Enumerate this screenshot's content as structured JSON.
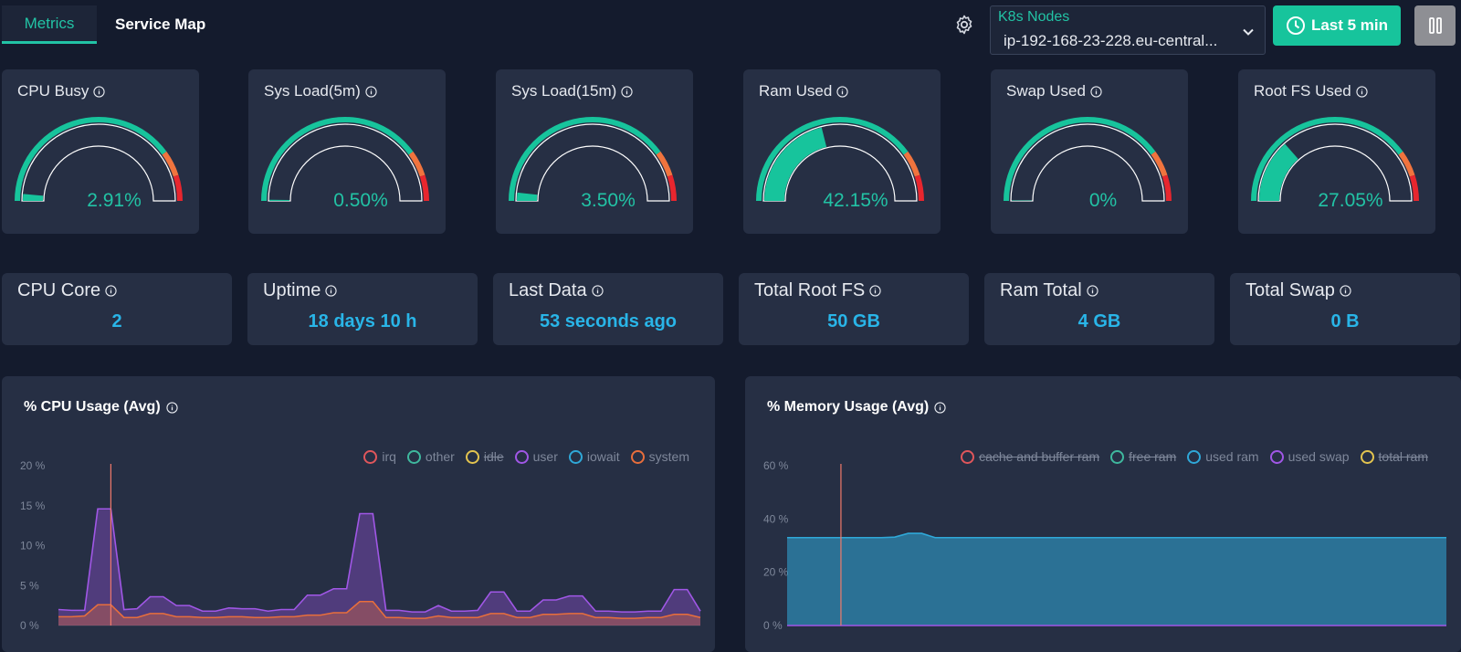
{
  "header": {
    "tabs": [
      {
        "label": "Metrics",
        "active": true
      },
      {
        "label": "Service Map",
        "active": false
      }
    ],
    "node_select": {
      "label": "K8s Nodes",
      "value": "ip-192-168-23-228.eu-central..."
    },
    "time_button": "Last 5 min"
  },
  "gauges": [
    {
      "title": "CPU Busy",
      "value": "2.91%",
      "fraction": 0.0291
    },
    {
      "title": "Sys Load(5m)",
      "value": "0.50%",
      "fraction": 0.005
    },
    {
      "title": "Sys Load(15m)",
      "value": "3.50%",
      "fraction": 0.035
    },
    {
      "title": "Ram Used",
      "value": "42.15%",
      "fraction": 0.4215
    },
    {
      "title": "Swap Used",
      "value": "0%",
      "fraction": 0
    },
    {
      "title": "Root FS Used",
      "value": "27.05%",
      "fraction": 0.2705
    }
  ],
  "stats": [
    {
      "title": "CPU Core",
      "value": "2"
    },
    {
      "title": "Uptime",
      "value": "18 days 10 h"
    },
    {
      "title": "Last Data",
      "value": "53 seconds ago"
    },
    {
      "title": "Total Root FS",
      "value": "50 GB"
    },
    {
      "title": "Ram Total",
      "value": "4 GB"
    },
    {
      "title": "Total Swap",
      "value": "0 B"
    }
  ],
  "colors": {
    "accent": "#17c49c",
    "gauge_green": "#17c49c",
    "gauge_orange": "#f0743e",
    "gauge_red": "#e8262e",
    "stat_blue": "#29b5e8"
  },
  "chart_data": [
    {
      "type": "area",
      "title": "% CPU Usage (Avg)",
      "y_ticks": [
        "20 %",
        "15 %",
        "10 %",
        "5 %",
        "0 %"
      ],
      "ylim": [
        0,
        20
      ],
      "legend": [
        {
          "name": "irq",
          "color": "#e0565b",
          "enabled": true
        },
        {
          "name": "other",
          "color": "#3fb89e",
          "enabled": true
        },
        {
          "name": "idle",
          "color": "#e3c44f",
          "enabled": false
        },
        {
          "name": "user",
          "color": "#a057e6",
          "enabled": true
        },
        {
          "name": "iowait",
          "color": "#2fa8d8",
          "enabled": true
        },
        {
          "name": "system",
          "color": "#e86e3c",
          "enabled": true
        }
      ],
      "series": [
        {
          "name": "user",
          "values": [
            2.0,
            1.9,
            1.9,
            14.6,
            14.6,
            2.0,
            2.1,
            3.6,
            3.6,
            2.5,
            2.5,
            1.8,
            1.8,
            2.2,
            2.1,
            2.1,
            1.8,
            2.0,
            2.0,
            3.8,
            3.8,
            4.6,
            4.6,
            14.0,
            14.0,
            1.9,
            1.9,
            1.7,
            1.7,
            2.5,
            1.8,
            1.8,
            1.9,
            4.2,
            4.2,
            1.8,
            1.8,
            3.2,
            3.2,
            3.7,
            3.7,
            1.8,
            1.8,
            1.7,
            1.7,
            1.8,
            1.8,
            4.5,
            4.5,
            1.8
          ]
        },
        {
          "name": "system",
          "values": [
            1.1,
            1.1,
            1.2,
            2.6,
            2.6,
            1.0,
            1.0,
            1.5,
            1.5,
            1.1,
            1.1,
            1.0,
            1.0,
            1.1,
            1.1,
            1.0,
            1.0,
            1.1,
            1.1,
            1.3,
            1.3,
            1.6,
            1.6,
            3.0,
            3.0,
            1.0,
            1.0,
            0.9,
            0.9,
            1.2,
            1.0,
            1.0,
            1.0,
            1.5,
            1.5,
            1.0,
            1.0,
            1.4,
            1.4,
            1.5,
            1.5,
            1.0,
            1.0,
            0.9,
            0.9,
            1.0,
            1.0,
            1.4,
            1.4,
            1.0
          ]
        }
      ],
      "marker_index": 4
    },
    {
      "type": "area",
      "title": "% Memory Usage (Avg)",
      "y_ticks": [
        "60 %",
        "40 %",
        "20 %",
        "0 %"
      ],
      "ylim": [
        0,
        60
      ],
      "legend": [
        {
          "name": "cache and buffer ram",
          "color": "#e0565b",
          "enabled": false
        },
        {
          "name": "free ram",
          "color": "#3fb89e",
          "enabled": false
        },
        {
          "name": "used ram",
          "color": "#2fa8d8",
          "enabled": true
        },
        {
          "name": "used swap",
          "color": "#a057e6",
          "enabled": true
        },
        {
          "name": "total ram",
          "color": "#e3c44f",
          "enabled": false
        }
      ],
      "series": [
        {
          "name": "used ram",
          "values": [
            33.0,
            33.0,
            33.0,
            33.0,
            33.0,
            33.0,
            33.0,
            33.0,
            33.2,
            34.6,
            34.6,
            33.0,
            33.0,
            33.0,
            33.0,
            33.0,
            33.0,
            33.0,
            33.0,
            33.0,
            33.0,
            33.0,
            33.0,
            33.0,
            33.0,
            33.0,
            33.0,
            33.0,
            33.0,
            33.0,
            33.0,
            33.0,
            33.0,
            33.0,
            33.0,
            33.0,
            33.0,
            33.0,
            33.0,
            33.0,
            33.0,
            33.0,
            33.0,
            33.0,
            33.0,
            33.0,
            33.0,
            33.0,
            33.0,
            33.0
          ]
        },
        {
          "name": "used swap",
          "values": [
            0,
            0,
            0,
            0,
            0,
            0,
            0,
            0,
            0,
            0,
            0,
            0,
            0,
            0,
            0,
            0,
            0,
            0,
            0,
            0,
            0,
            0,
            0,
            0,
            0,
            0,
            0,
            0,
            0,
            0,
            0,
            0,
            0,
            0,
            0,
            0,
            0,
            0,
            0,
            0,
            0,
            0,
            0,
            0,
            0,
            0,
            0,
            0,
            0,
            0
          ]
        }
      ],
      "marker_index": 4
    }
  ]
}
